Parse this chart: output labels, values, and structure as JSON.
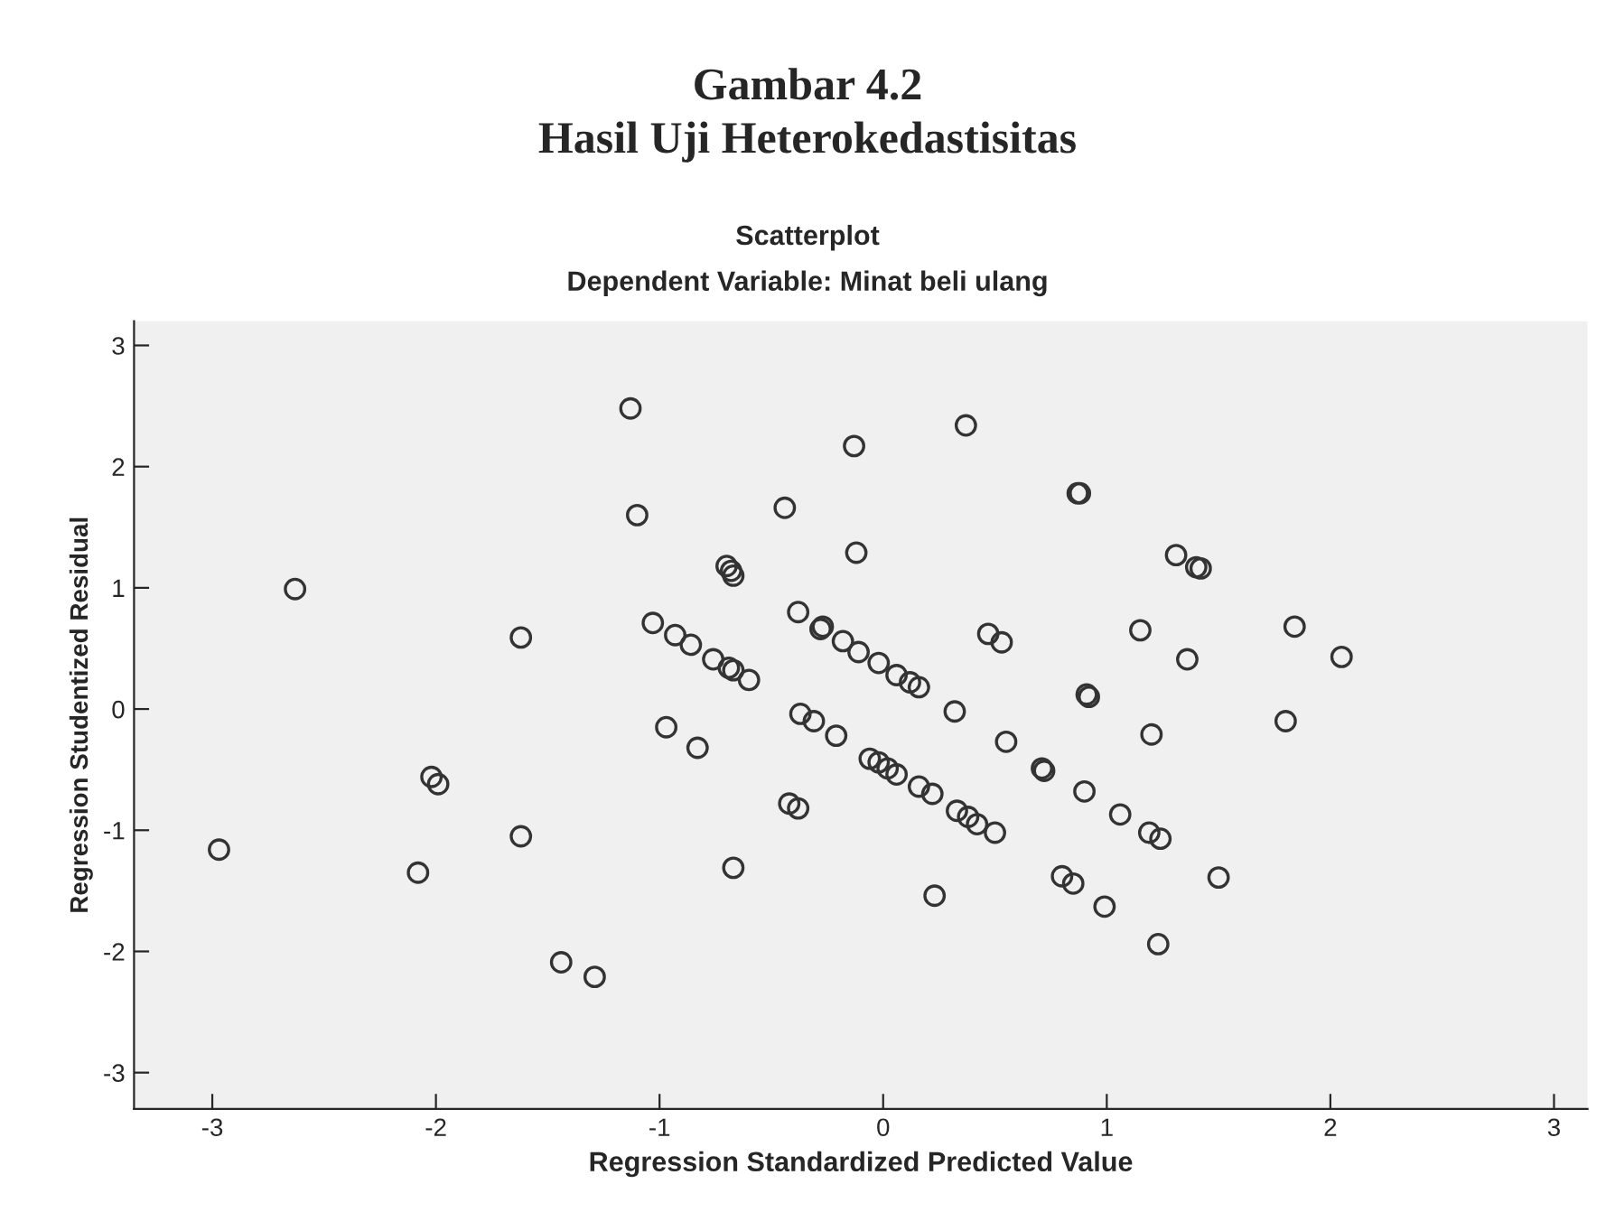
{
  "chart_data": {
    "type": "scatter",
    "title": "Gambar 4.2\nHasil Uji Heterokedastisitas",
    "subtitle": "Scatterplot\nDependent Variable: Minat beli ulang",
    "xlabel": "Regression Standardized Predicted Value",
    "ylabel": "Regression Studentized Residual",
    "x": [
      -2.97,
      -2.63,
      -2.08,
      -2.02,
      -1.99,
      -1.62,
      -1.62,
      -1.44,
      -1.29,
      -1.13,
      -1.1,
      -1.03,
      -0.97,
      -0.93,
      -0.86,
      -0.83,
      -0.76,
      -0.69,
      -0.67,
      -0.6,
      -0.7,
      -0.68,
      -0.67,
      -0.67,
      -0.44,
      -0.38,
      -0.42,
      -0.38,
      -0.37,
      -0.31,
      -0.28,
      -0.27,
      -0.21,
      -0.18,
      -0.13,
      -0.12,
      -0.11,
      -0.06,
      -0.02,
      -0.02,
      0.02,
      0.06,
      0.06,
      0.12,
      0.16,
      0.16,
      0.22,
      0.23,
      0.32,
      0.33,
      0.37,
      0.38,
      0.42,
      0.47,
      0.5,
      0.53,
      0.55,
      0.71,
      0.72,
      0.8,
      0.85,
      0.87,
      0.88,
      0.9,
      0.91,
      0.92,
      0.99,
      1.06,
      1.15,
      1.19,
      1.2,
      1.23,
      1.24,
      1.31,
      1.36,
      1.4,
      1.42,
      1.5,
      1.8,
      1.84,
      2.05
    ],
    "values": [
      -1.16,
      0.99,
      -1.35,
      -0.56,
      -0.62,
      0.59,
      -1.05,
      -2.09,
      -2.21,
      2.48,
      1.6,
      0.71,
      -0.15,
      0.61,
      0.53,
      -0.32,
      0.41,
      0.34,
      0.32,
      0.24,
      1.18,
      1.14,
      1.1,
      -1.31,
      1.66,
      0.8,
      -0.78,
      -0.82,
      -0.04,
      -0.1,
      0.66,
      0.68,
      -0.22,
      0.56,
      2.17,
      1.29,
      0.47,
      -0.41,
      0.38,
      -0.44,
      -0.49,
      0.28,
      -0.54,
      0.22,
      0.18,
      -0.64,
      -0.7,
      -1.54,
      -0.02,
      -0.84,
      2.34,
      -0.89,
      -0.95,
      0.62,
      -1.02,
      0.55,
      -0.27,
      -0.49,
      -0.51,
      -1.38,
      -1.44,
      1.78,
      1.78,
      -0.68,
      0.12,
      0.1,
      -1.63,
      -0.87,
      0.65,
      -1.02,
      -0.21,
      -1.94,
      -1.07,
      1.27,
      0.41,
      1.17,
      1.16,
      -1.39,
      -0.1,
      0.68,
      0.43
    ],
    "color": "#333333",
    "marker": "circle",
    "xlim": [
      -3.35,
      3.15
    ],
    "ylim": [
      -3.3,
      3.2
    ],
    "xticks": [
      -3,
      -2,
      -1,
      0,
      1,
      2,
      3
    ],
    "yticks": [
      -3,
      -2,
      -1,
      0,
      1,
      2,
      3
    ],
    "grid": false
  }
}
